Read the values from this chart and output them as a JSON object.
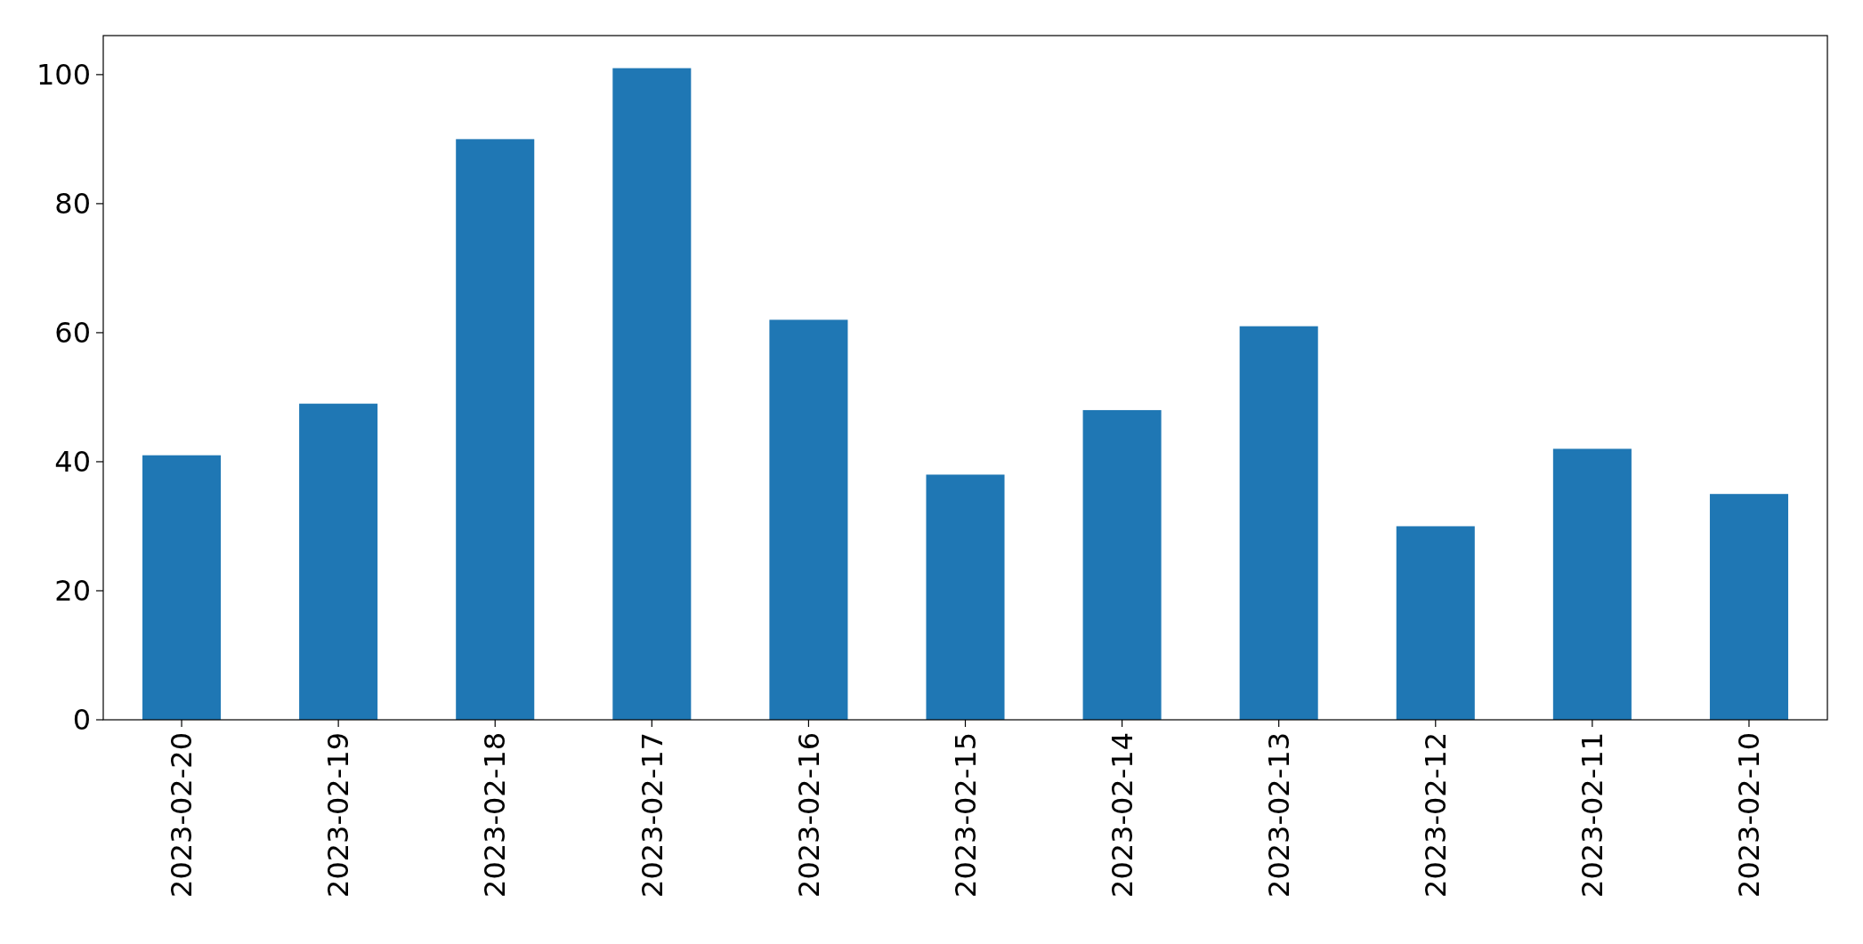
{
  "chart_data": {
    "type": "bar",
    "categories": [
      "2023-02-20",
      "2023-02-19",
      "2023-02-18",
      "2023-02-17",
      "2023-02-16",
      "2023-02-15",
      "2023-02-14",
      "2023-02-13",
      "2023-02-12",
      "2023-02-11",
      "2023-02-10"
    ],
    "values": [
      41,
      49,
      90,
      101,
      62,
      38,
      48,
      61,
      30,
      42,
      35
    ],
    "color": "#1f77b4",
    "ylim": [
      0,
      106.05
    ],
    "yticks": [
      0,
      20,
      40,
      60,
      80,
      100
    ],
    "grid": false
  }
}
